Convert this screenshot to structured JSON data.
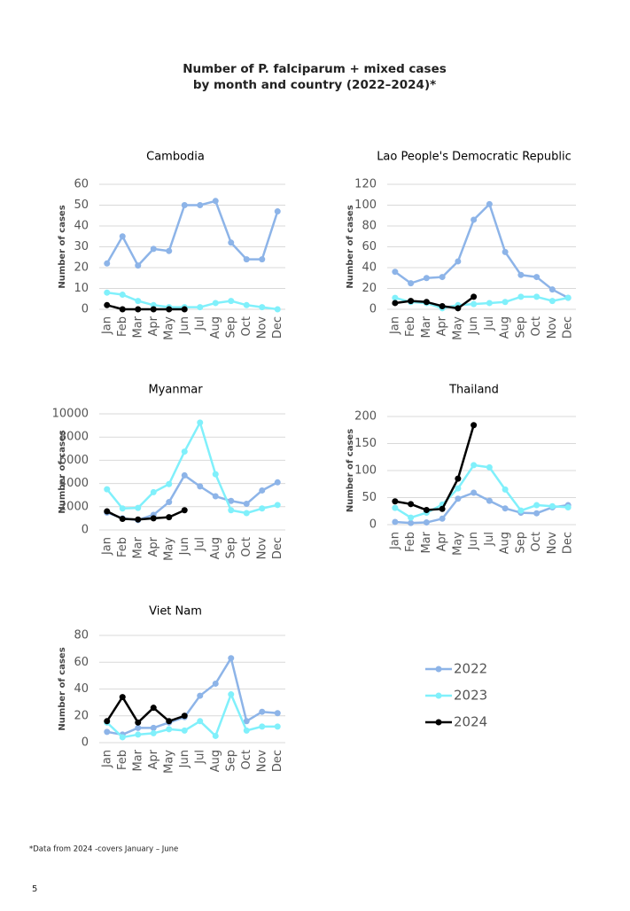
{
  "title": [
    "Number of P. falciparum + mixed cases",
    "by month and country (2022–2024)*"
  ],
  "legend": [
    {
      "name": "2022",
      "color": "#8db4e8"
    },
    {
      "name": "2023",
      "color": "#80f0fb"
    },
    {
      "name": "2024",
      "color": "#000000"
    }
  ],
  "chart_data": [
    {
      "type": "line",
      "title": "Cambodia",
      "ylabel": "Number of cases",
      "categories": [
        "Jan",
        "Feb",
        "Mar",
        "Apr",
        "May",
        "Jun",
        "Jul",
        "Aug",
        "Sep",
        "Oct",
        "Nov",
        "Dec"
      ],
      "ylim": [
        0,
        60
      ],
      "yticks": [
        0,
        10,
        20,
        30,
        40,
        50,
        60
      ],
      "grid": true,
      "series": [
        {
          "values": [
            22,
            35,
            21,
            29,
            28,
            50,
            50,
            52,
            32,
            24,
            24,
            47
          ]
        },
        {
          "values": [
            8,
            7,
            4,
            2,
            1,
            1,
            1,
            3,
            4,
            2,
            1,
            0
          ]
        },
        {
          "values": [
            2,
            0,
            0,
            0,
            0,
            0,
            null,
            null,
            null,
            null,
            null,
            null
          ]
        }
      ]
    },
    {
      "type": "line",
      "title": "Lao People's Democratic Republic",
      "ylabel": "Number of cases",
      "categories": [
        "Jan",
        "Feb",
        "Mar",
        "Apr",
        "May",
        "Jun",
        "Jul",
        "Aug",
        "Sep",
        "Oct",
        "Nov",
        "Dec"
      ],
      "ylim": [
        0,
        120
      ],
      "yticks": [
        0,
        20,
        40,
        60,
        80,
        100,
        120
      ],
      "grid": true,
      "series": [
        {
          "values": [
            36,
            25,
            30,
            31,
            46,
            86,
            101,
            55,
            33,
            31,
            19,
            11
          ]
        },
        {
          "values": [
            11,
            7,
            6,
            1,
            4,
            5,
            6,
            7,
            12,
            12,
            8,
            11
          ]
        },
        {
          "values": [
            6,
            8,
            7,
            3,
            1,
            12,
            null,
            null,
            null,
            null,
            null,
            null
          ]
        }
      ]
    },
    {
      "type": "line",
      "title": "Myanmar",
      "ylabel": "Number of cases",
      "categories": [
        "Jan",
        "Feb",
        "Mar",
        "Apr",
        "May",
        "Jun",
        "Jul",
        "Aug",
        "Sep",
        "Oct",
        "Nov",
        "Dec"
      ],
      "ylim": [
        0,
        10000
      ],
      "yticks": [
        0,
        2000,
        4000,
        6000,
        8000,
        10000
      ],
      "grid": true,
      "series": [
        {
          "values": [
            1500,
            1000,
            850,
            1300,
            2400,
            4700,
            3750,
            2900,
            2500,
            2250,
            3400,
            4100
          ]
        },
        {
          "values": [
            3500,
            1850,
            1900,
            3250,
            3950,
            6750,
            9250,
            4800,
            1700,
            1450,
            1850,
            2150
          ]
        },
        {
          "values": [
            1600,
            950,
            900,
            1000,
            1100,
            1700,
            null,
            null,
            null,
            null,
            null,
            null
          ]
        }
      ]
    },
    {
      "type": "line",
      "title": "Thailand",
      "ylabel": "Number of cases",
      "categories": [
        "Jan",
        "Feb",
        "Mar",
        "Apr",
        "May",
        "Jun",
        "Jul",
        "Aug",
        "Sep",
        "Oct",
        "Nov",
        "Dec"
      ],
      "ylim": [
        0,
        200
      ],
      "yticks": [
        0,
        50,
        100,
        150,
        200
      ],
      "grid": true,
      "series": [
        {
          "values": [
            5,
            3,
            4,
            11,
            48,
            59,
            44,
            30,
            22,
            21,
            32,
            36
          ]
        },
        {
          "values": [
            31,
            13,
            22,
            37,
            67,
            110,
            106,
            65,
            26,
            36,
            34,
            32
          ]
        },
        {
          "values": [
            43,
            38,
            27,
            29,
            85,
            184,
            null,
            null,
            null,
            null,
            null,
            null
          ]
        }
      ]
    },
    {
      "type": "line",
      "title": "Viet Nam",
      "ylabel": "Number of cases",
      "categories": [
        "Jan",
        "Feb",
        "Mar",
        "Apr",
        "May",
        "Jun",
        "Jul",
        "Aug",
        "Sep",
        "Oct",
        "Nov",
        "Dec"
      ],
      "ylim": [
        0,
        80
      ],
      "yticks": [
        0,
        20,
        40,
        60,
        80
      ],
      "grid": true,
      "series": [
        {
          "values": [
            8,
            6,
            11,
            11,
            15,
            19,
            35,
            44,
            63,
            16,
            23,
            22
          ]
        },
        {
          "values": [
            15,
            4,
            6,
            7,
            10,
            9,
            16,
            5,
            36,
            9,
            12,
            12
          ]
        },
        {
          "values": [
            16,
            34,
            15,
            26,
            16,
            20,
            null,
            null,
            null,
            null,
            null,
            null
          ]
        }
      ]
    }
  ],
  "footnote": "*Data from 2024 -covers January – June",
  "page_number": "5"
}
